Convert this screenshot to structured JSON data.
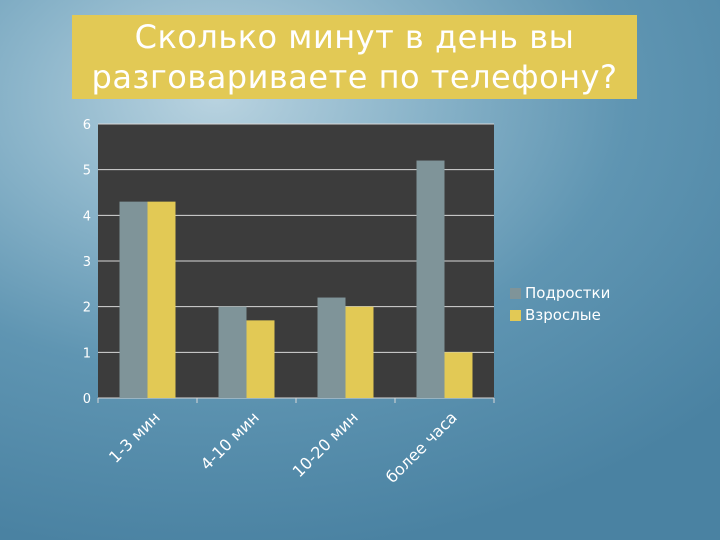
{
  "colors": {
    "plot_background": "#3c3c3c",
    "title_background": "#e2c955",
    "gridline": "#d8d8d8",
    "tick_text": "#ffffff"
  },
  "chart_data": {
    "type": "bar",
    "title": "Сколько минут в день вы\nразговариваете по телефону?",
    "categories": [
      "1-3 мин",
      "4-10 мин",
      "10-20 мин",
      "более часа"
    ],
    "series": [
      {
        "name": "Подростки",
        "color": "#7f9499",
        "values": [
          4.3,
          2.0,
          2.2,
          5.2
        ]
      },
      {
        "name": "Взрослые",
        "color": "#e2c955",
        "values": [
          4.3,
          1.7,
          2.0,
          1.0
        ]
      }
    ],
    "ylim": [
      0,
      6
    ],
    "yticks": [
      0,
      1,
      2,
      3,
      4,
      5,
      6
    ],
    "grid": true,
    "legend_position": "right",
    "xlabel": "",
    "ylabel": ""
  }
}
